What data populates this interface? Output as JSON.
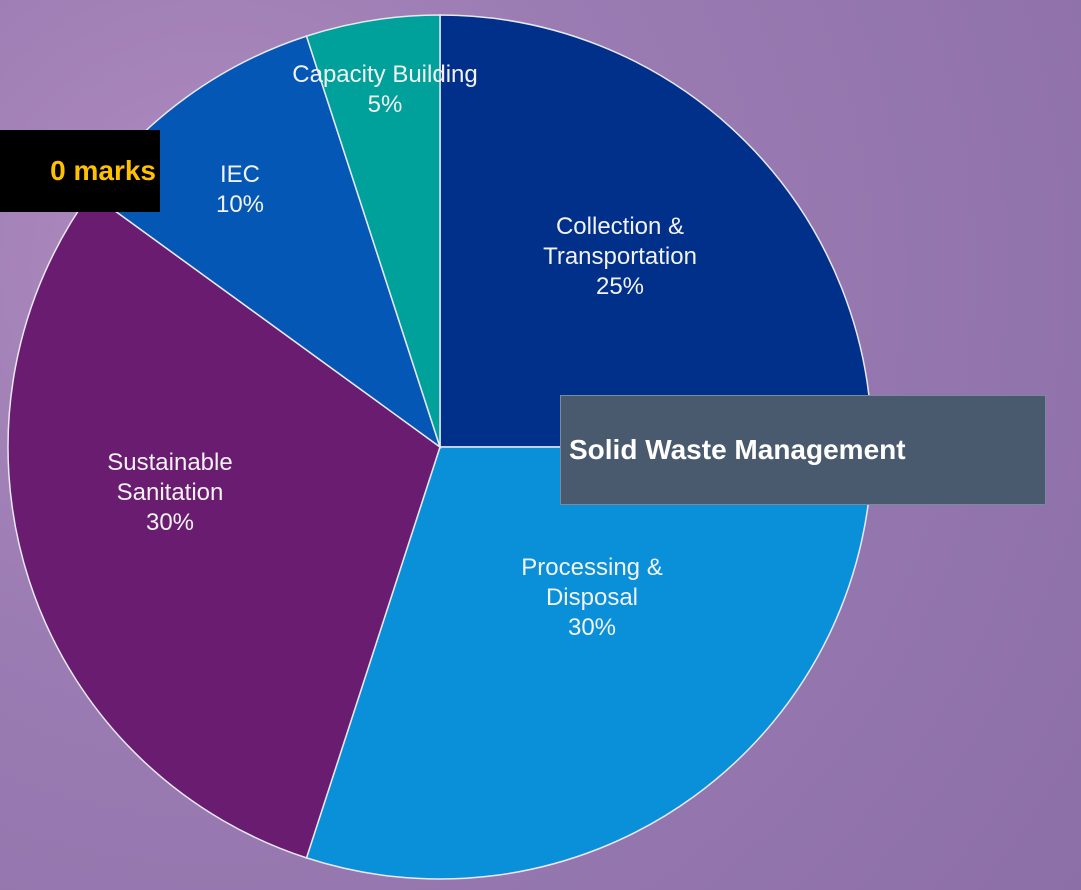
{
  "chart_data": {
    "type": "pie",
    "categories": [
      "Collection & Transportation",
      "Processing & Disposal",
      "Sustainable Sanitation",
      "IEC",
      "Capacity Building"
    ],
    "values": [
      25,
      30,
      30,
      10,
      5
    ],
    "value_labels": [
      "25%",
      "30%",
      "30%",
      "10%",
      "5%"
    ],
    "colors": [
      "#00308a",
      "#0a90d8",
      "#6a1c70",
      "#0557b5",
      "#00a19a"
    ]
  },
  "annotations": {
    "marks": "0 marks",
    "title": "Solid Waste Management"
  }
}
